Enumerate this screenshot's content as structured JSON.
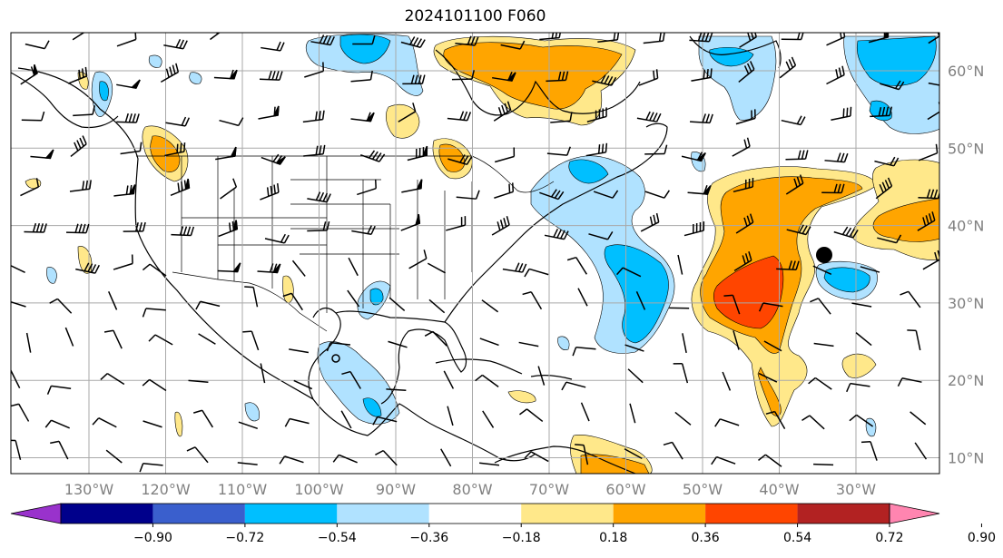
{
  "title": "2024101100 F060",
  "map": {
    "lon_labels": [
      "130°W",
      "120°W",
      "110°W",
      "100°W",
      "90°W",
      "80°W",
      "70°W",
      "60°W",
      "50°W",
      "40°W",
      "30°W"
    ],
    "lat_labels": [
      "60°N",
      "50°N",
      "40°N",
      "30°N",
      "20°N",
      "10°N"
    ],
    "grid": true,
    "features": [
      "coastlines",
      "country borders",
      "US state borders",
      "wind barbs",
      "filled contours"
    ],
    "marker": {
      "lon": -35,
      "lat": 36,
      "shape": "filled circle"
    }
  },
  "colorbar": {
    "levels": [
      "−0.90",
      "−0.72",
      "−0.54",
      "−0.36",
      "−0.18",
      "0.18",
      "0.36",
      "0.54",
      "0.72",
      "0.90"
    ],
    "colors": [
      "#9932cc",
      "#00008b",
      "#3a5fcd",
      "#00bfff",
      "#b0e2ff",
      "#ffffff",
      "#ffe88a",
      "#ffa500",
      "#ff4500",
      "#b22222",
      "#ff85b0"
    ],
    "extend": "both"
  },
  "colors": {
    "light_blue": "#b0e2ff",
    "blue": "#00bfff",
    "yellow": "#ffe88a",
    "orange": "#ffa500",
    "red_orange": "#ff4500"
  }
}
